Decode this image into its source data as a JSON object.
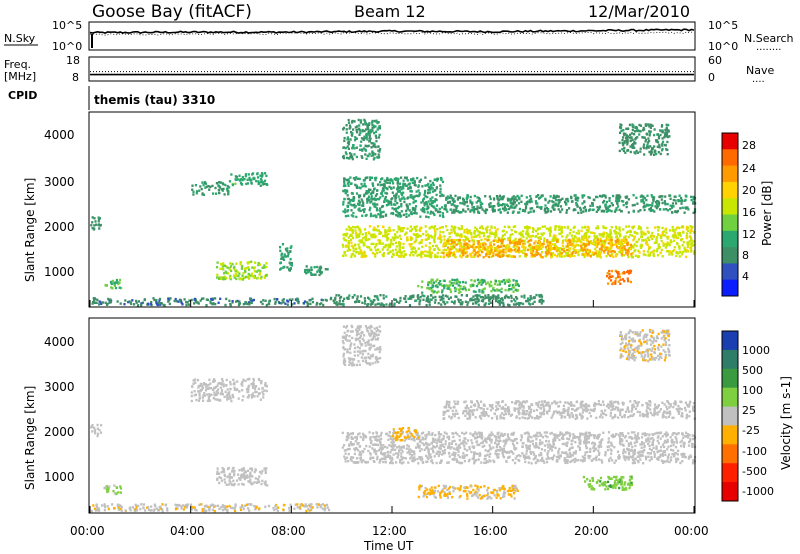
{
  "header": {
    "station": "Goose Bay (fitACF)",
    "beam": "Beam 12",
    "date": "12/Mar/2010"
  },
  "nsky_panel": {
    "left_label": "N.Sky",
    "right_label": "N.Search",
    "left_ticks": [
      "10^5",
      "10^0"
    ],
    "right_ticks": [
      "10^5",
      "10^0"
    ],
    "right_dots": "........"
  },
  "freq_panel": {
    "label_line1": "Freq.",
    "label_line2": "[MHz]",
    "left_ticks": [
      "18",
      "8"
    ],
    "right_label": "Nave",
    "right_ticks": [
      "60",
      "0"
    ],
    "right_dots": "...."
  },
  "cpid": {
    "label": "CPID",
    "value": "themis (tau) 3310"
  },
  "axes": {
    "ylabel": "Slant Range [km]",
    "yticks": [
      "4000",
      "3000",
      "2000",
      "1000"
    ],
    "xticks": [
      "00:00",
      "04:00",
      "08:00",
      "12:00",
      "16:00",
      "20:00",
      "00:00"
    ],
    "xlabel": "Time UT"
  },
  "power_colorbar": {
    "label": "Power [dB]",
    "ticks": [
      "28",
      "24",
      "20",
      "16",
      "12",
      "8",
      "4"
    ],
    "colors": [
      "#e60000",
      "#ff6a00",
      "#ff9a00",
      "#ffd200",
      "#c8e600",
      "#70d040",
      "#2aa870",
      "#3d8f66",
      "#3050c0",
      "#0a1eff"
    ]
  },
  "velocity_colorbar": {
    "label": "Velocity [m s-1]",
    "ticks": [
      "1000",
      "500",
      "100",
      "25",
      "-25",
      "-100",
      "-500",
      "-1000"
    ],
    "colors": [
      "#1a3fb0",
      "#2e7d68",
      "#3a9a40",
      "#7fd040",
      "#c0c0c0",
      "#ffb000",
      "#ff7000",
      "#ff2000",
      "#e60000"
    ]
  },
  "chart_data": [
    {
      "type": "line",
      "title": "N.Sky",
      "x": [
        "00:00",
        "04:00",
        "08:00",
        "12:00",
        "16:00",
        "20:00",
        "00:00"
      ],
      "series": [
        {
          "name": "N.Sky",
          "values": [
            3.2,
            3.3,
            3.3,
            3.5,
            3.4,
            3.6,
            3.8
          ]
        },
        {
          "name": "N.Search",
          "values": [
            2.8,
            2.9,
            3.0,
            3.1,
            3.0,
            3.1,
            3.2
          ]
        }
      ],
      "ylim": [
        0,
        5
      ],
      "y_scale": "log10"
    },
    {
      "type": "line",
      "title": "Freq.",
      "x": [
        "00:00",
        "04:00",
        "08:00",
        "12:00",
        "16:00",
        "20:00",
        "00:00"
      ],
      "series": [
        {
          "name": "Freq.",
          "values": [
            10.2,
            10.2,
            10.2,
            10.2,
            10.2,
            10.2,
            10.2
          ]
        },
        {
          "name": "Nave",
          "values": [
            18,
            18,
            18,
            18,
            18,
            18,
            18
          ]
        }
      ],
      "ylim": [
        8,
        18
      ]
    },
    {
      "type": "heatmap",
      "title": "Power [dB]",
      "xlabel": "Time UT",
      "ylabel": "Slant Range [km]",
      "xlim": [
        0,
        24
      ],
      "ylim": [
        200,
        4500
      ],
      "clim": [
        0,
        30
      ],
      "regions": [
        {
          "t": [
            0.0,
            0.4
          ],
          "r": [
            1900,
            2200
          ],
          "value": 7
        },
        {
          "t": [
            0.5,
            1.2
          ],
          "r": [
            600,
            800
          ],
          "value": 11
        },
        {
          "t": [
            0.0,
            9.5
          ],
          "r": [
            220,
            380
          ],
          "value": 6
        },
        {
          "t": [
            4.0,
            5.5
          ],
          "r": [
            2700,
            3000
          ],
          "value": 8
        },
        {
          "t": [
            5.5,
            7.0
          ],
          "r": [
            2900,
            3200
          ],
          "value": 10
        },
        {
          "t": [
            5.0,
            7.0
          ],
          "r": [
            800,
            1200
          ],
          "value": 15
        },
        {
          "t": [
            7.5,
            8.0
          ],
          "r": [
            1000,
            1600
          ],
          "value": 9
        },
        {
          "t": [
            8.5,
            9.5
          ],
          "r": [
            900,
            1100
          ],
          "value": 8
        },
        {
          "t": [
            10.0,
            24.0
          ],
          "r": [
            1300,
            2000
          ],
          "value": 17
        },
        {
          "t": [
            14.0,
            21.5
          ],
          "r": [
            1300,
            1700
          ],
          "value": 22
        },
        {
          "t": [
            10.0,
            14.0
          ],
          "r": [
            2200,
            3100
          ],
          "value": 9
        },
        {
          "t": [
            14.0,
            24.0
          ],
          "r": [
            2300,
            2700
          ],
          "value": 8
        },
        {
          "t": [
            13.0,
            17.0
          ],
          "r": [
            500,
            800
          ],
          "value": 12
        },
        {
          "t": [
            20.5,
            21.5
          ],
          "r": [
            700,
            1000
          ],
          "value": 26
        },
        {
          "t": [
            10.0,
            11.5
          ],
          "r": [
            3500,
            4400
          ],
          "value": 8
        },
        {
          "t": [
            21.0,
            23.0
          ],
          "r": [
            3600,
            4300
          ],
          "value": 7
        },
        {
          "t": [
            9.5,
            18.0
          ],
          "r": [
            220,
            450
          ],
          "value": 7
        }
      ]
    },
    {
      "type": "heatmap",
      "title": "Velocity [m s-1]",
      "xlabel": "Time UT",
      "ylabel": "Slant Range [km]",
      "xlim": [
        0,
        24
      ],
      "ylim": [
        200,
        4500
      ],
      "clim": [
        -1000,
        1000
      ],
      "regions": [
        {
          "t": [
            0.0,
            0.4
          ],
          "r": [
            1900,
            2200
          ],
          "value": 0
        },
        {
          "t": [
            0.5,
            1.2
          ],
          "r": [
            600,
            800
          ],
          "value": 200
        },
        {
          "t": [
            0.0,
            9.5
          ],
          "r": [
            220,
            380
          ],
          "value": -60
        },
        {
          "t": [
            4.0,
            7.0
          ],
          "r": [
            2700,
            3200
          ],
          "value": 0
        },
        {
          "t": [
            5.0,
            7.0
          ],
          "r": [
            800,
            1200
          ],
          "value": 0
        },
        {
          "t": [
            10.0,
            24.0
          ],
          "r": [
            1300,
            2000
          ],
          "value": 0
        },
        {
          "t": [
            12.0,
            13.0
          ],
          "r": [
            1800,
            2100
          ],
          "value": -200
        },
        {
          "t": [
            13.0,
            17.0
          ],
          "r": [
            500,
            800
          ],
          "value": -150
        },
        {
          "t": [
            19.5,
            21.5
          ],
          "r": [
            700,
            1000
          ],
          "value": 300
        },
        {
          "t": [
            10.0,
            11.5
          ],
          "r": [
            3500,
            4400
          ],
          "value": 0
        },
        {
          "t": [
            21.0,
            23.0
          ],
          "r": [
            3600,
            4300
          ],
          "value": -60
        },
        {
          "t": [
            14.0,
            24.0
          ],
          "r": [
            2300,
            2700
          ],
          "value": 0
        }
      ]
    }
  ]
}
